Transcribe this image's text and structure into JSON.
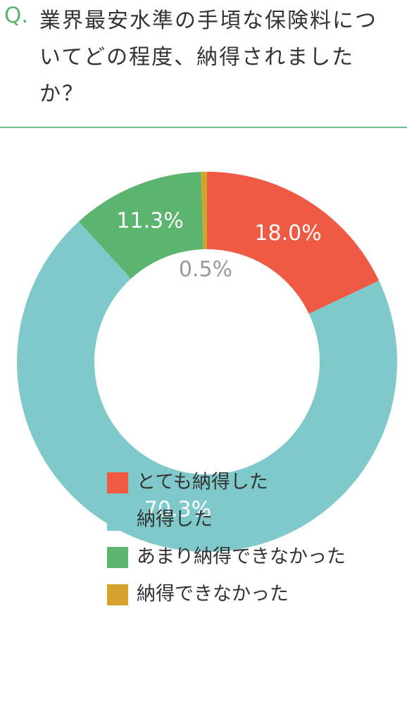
{
  "chart_data": {
    "type": "donut",
    "question_marker": "Q.",
    "title": "業界最安水準の手頃な保険料についてどの程度、納得されましたか？",
    "categories": [
      "とても納得した",
      "納得した",
      "あまり納得できなかった",
      "納得できなかった"
    ],
    "values": [
      18.0,
      70.3,
      11.3,
      0.5
    ],
    "value_labels": [
      "18.0%",
      "70.3%",
      "11.3%",
      "0.5%"
    ],
    "colors": [
      "#ee5a43",
      "#80c9ca",
      "#5bb56f",
      "#d5a22d"
    ],
    "legend": "bottom"
  }
}
